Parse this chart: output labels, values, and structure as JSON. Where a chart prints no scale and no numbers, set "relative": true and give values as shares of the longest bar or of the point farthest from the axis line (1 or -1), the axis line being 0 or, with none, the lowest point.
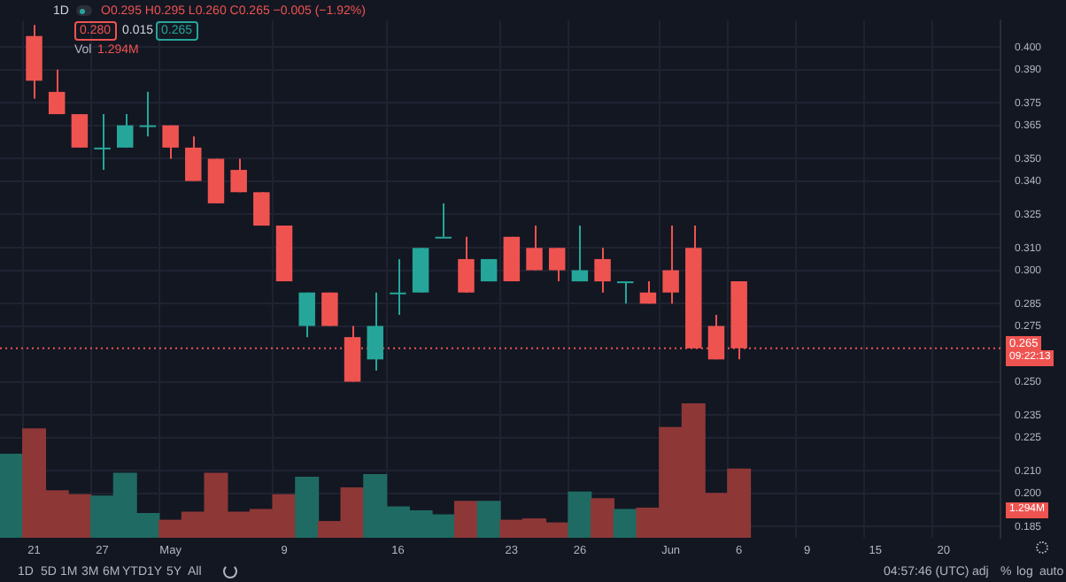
{
  "chart_data": [
    {
      "type": "candlestick",
      "subtitle": "1D",
      "categories": [
        null,
        "21",
        null,
        null,
        "27",
        null,
        null,
        "May",
        null,
        null,
        null,
        null,
        "9",
        null,
        null,
        null,
        null,
        "16",
        null,
        null,
        null,
        null,
        "23",
        null,
        null,
        "26",
        null,
        null,
        null,
        "Jun",
        null,
        null,
        "6",
        null,
        null,
        "9",
        null,
        null,
        "15",
        null,
        null,
        "20",
        null,
        null
      ],
      "ohlc": [
        null,
        [
          0.405,
          0.41,
          0.377,
          0.385
        ],
        [
          0.38,
          0.39,
          0.37,
          0.37
        ],
        [
          0.37,
          0.37,
          0.355,
          0.355
        ],
        [
          0.355,
          0.37,
          0.345,
          0.355
        ],
        [
          0.355,
          0.37,
          0.355,
          0.365
        ],
        [
          0.365,
          0.38,
          0.36,
          0.365
        ],
        [
          0.365,
          0.365,
          0.35,
          0.355
        ],
        [
          0.355,
          0.36,
          0.34,
          0.34
        ],
        [
          0.35,
          0.35,
          0.33,
          0.33
        ],
        [
          0.345,
          0.35,
          0.335,
          0.335
        ],
        [
          0.335,
          0.335,
          0.32,
          0.32
        ],
        [
          0.32,
          0.32,
          0.295,
          0.295
        ],
        [
          0.275,
          0.29,
          0.27,
          0.29
        ],
        [
          0.29,
          0.29,
          0.275,
          0.275
        ],
        [
          0.27,
          0.275,
          0.25,
          0.25
        ],
        [
          0.26,
          0.29,
          0.255,
          0.275
        ],
        [
          0.29,
          0.305,
          0.28,
          0.29
        ],
        [
          0.29,
          0.31,
          0.29,
          0.31
        ],
        [
          0.315,
          0.33,
          0.315,
          0.315
        ],
        [
          0.305,
          0.315,
          0.29,
          0.29
        ],
        [
          0.295,
          0.305,
          0.295,
          0.305
        ],
        [
          0.315,
          0.315,
          0.295,
          0.295
        ],
        [
          0.31,
          0.32,
          0.3,
          0.3
        ],
        [
          0.31,
          0.31,
          0.295,
          0.3
        ],
        [
          0.295,
          0.32,
          0.295,
          0.3
        ],
        [
          0.305,
          0.31,
          0.29,
          0.295
        ],
        [
          0.295,
          0.295,
          0.285,
          0.295
        ],
        [
          0.29,
          0.295,
          0.285,
          0.285
        ],
        [
          0.3,
          0.32,
          0.285,
          0.29
        ],
        [
          0.31,
          0.32,
          0.265,
          0.265
        ],
        [
          0.275,
          0.28,
          0.26,
          0.26
        ],
        [
          0.295,
          0.295,
          0.26,
          0.265
        ],
        null,
        null,
        null,
        null,
        null,
        null,
        null,
        null,
        null,
        null,
        null
      ],
      "colors": [
        null,
        "#ef5350",
        "#ef5350",
        "#ef5350",
        "#26a69a",
        "#26a69a",
        "#26a69a",
        "#ef5350",
        "#ef5350",
        "#ef5350",
        "#ef5350",
        "#ef5350",
        "#ef5350",
        "#26a69a",
        "#ef5350",
        "#ef5350",
        "#26a69a",
        "#26a69a",
        "#26a69a",
        "#26a69a",
        "#ef5350",
        "#26a69a",
        "#ef5350",
        "#ef5350",
        "#ef5350",
        "#26a69a",
        "#ef5350",
        "#26a69a",
        "#ef5350",
        "#ef5350",
        "#ef5350",
        "#ef5350",
        "#ef5350",
        null,
        null,
        null,
        null,
        null,
        null,
        null,
        null,
        null,
        null,
        null
      ],
      "ylim": [
        0.18,
        0.412
      ],
      "yticks": [
        {
          "value": 0.4,
          "label": "0.400"
        },
        {
          "value": 0.39,
          "label": "0.390"
        },
        {
          "value": 0.375,
          "label": "0.375"
        },
        {
          "value": 0.365,
          "label": "0.365"
        },
        {
          "value": 0.35,
          "label": "0.350"
        },
        {
          "value": 0.34,
          "label": "0.340"
        },
        {
          "value": 0.325,
          "label": "0.325"
        },
        {
          "value": 0.31,
          "label": "0.310"
        },
        {
          "value": 0.3,
          "label": "0.300"
        },
        {
          "value": 0.285,
          "label": "0.285"
        },
        {
          "value": 0.275,
          "label": "0.275"
        },
        {
          "value": 0.25,
          "label": "0.250"
        },
        {
          "value": 0.235,
          "label": "0.235"
        },
        {
          "value": 0.225,
          "label": "0.225"
        },
        {
          "value": 0.21,
          "label": "0.210"
        },
        {
          "value": 0.2,
          "label": "0.200"
        },
        {
          "value": 0.185,
          "label": "0.185"
        }
      ],
      "grid": true,
      "ref_lines": [
        {
          "axis": "y",
          "value": 0.265,
          "label": "0.265",
          "color": "#ef5350",
          "line_style": "dotted"
        }
      ],
      "annotations": [
        "O0.295 H0.295 L0.260 C0.265 −0.005 (−1.92%)",
        "0.280",
        "0.015",
        "0.265",
        "09:22:13",
        "1D",
        "5D",
        "1M",
        "3M",
        "6M",
        "YTD",
        "1Y",
        "5Y",
        "All",
        "04:57:46 (UTC)",
        "adj",
        "%",
        "log",
        "auto"
      ]
    },
    {
      "type": "bar",
      "title": "Vol",
      "relative": true,
      "tick_labels": false,
      "categories": [
        null,
        null,
        null,
        null,
        null,
        null,
        null,
        null,
        null,
        null,
        null,
        null,
        null,
        null,
        null,
        null,
        null,
        null,
        null,
        null,
        null,
        null,
        null,
        null,
        null,
        null,
        null,
        null,
        null,
        null,
        null,
        null,
        null,
        null,
        null,
        null,
        null,
        null,
        null,
        null,
        null,
        null,
        null,
        null
      ],
      "values": [
        0.62,
        0.81,
        0.35,
        0.32,
        0.31,
        0.48,
        0.18,
        0.13,
        0.19,
        0.48,
        0.19,
        0.21,
        0.32,
        0.45,
        0.12,
        0.37,
        0.47,
        0.23,
        0.2,
        0.17,
        0.27,
        0.27,
        0.13,
        0.14,
        0.11,
        0.34,
        0.29,
        0.21,
        0.22,
        0.82,
        1,
        0.33,
        0.51,
        null,
        null,
        null,
        null,
        null,
        null,
        null,
        null,
        null,
        null,
        null
      ],
      "colors": [
        "#1f6b63",
        "#8e3737",
        "#8e3737",
        "#8e3737",
        "#1f6b63",
        "#1f6b63",
        "#1f6b63",
        "#8e3737",
        "#8e3737",
        "#8e3737",
        "#8e3737",
        "#8e3737",
        "#8e3737",
        "#1f6b63",
        "#8e3737",
        "#8e3737",
        "#1f6b63",
        "#1f6b63",
        "#1f6b63",
        "#1f6b63",
        "#8e3737",
        "#1f6b63",
        "#8e3737",
        "#8e3737",
        "#8e3737",
        "#1f6b63",
        "#8e3737",
        "#1f6b63",
        "#8e3737",
        "#8e3737",
        "#8e3737",
        "#8e3737",
        "#8e3737",
        null,
        null,
        null,
        null,
        null,
        null,
        null,
        null,
        null,
        null,
        null
      ],
      "annotations": [
        "1.294M"
      ]
    }
  ]
}
